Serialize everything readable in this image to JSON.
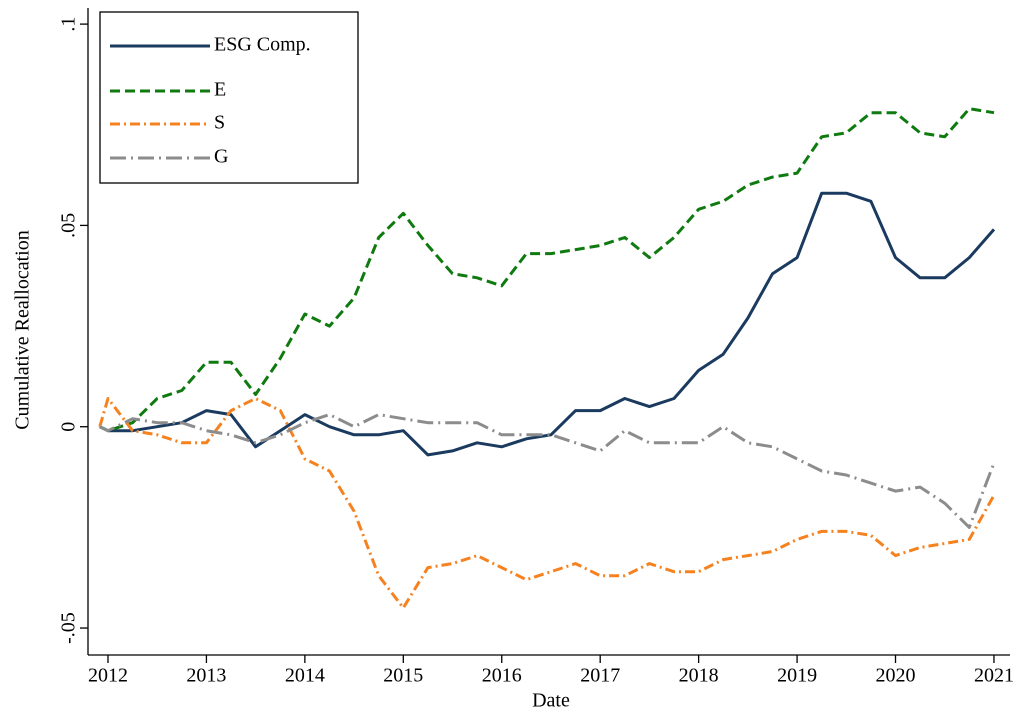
{
  "chart_data": {
    "type": "line",
    "xlabel": "Date",
    "ylabel": "Cumulative Reallocation",
    "x": [
      2011.917,
      2012,
      2012.25,
      2012.5,
      2012.75,
      2013,
      2013.25,
      2013.5,
      2013.75,
      2014,
      2014.25,
      2014.5,
      2014.75,
      2015,
      2015.25,
      2015.5,
      2015.75,
      2016,
      2016.25,
      2016.5,
      2016.75,
      2017,
      2017.25,
      2017.5,
      2017.75,
      2018,
      2018.25,
      2018.5,
      2018.75,
      2019,
      2019.25,
      2019.5,
      2019.75,
      2020,
      2020.25,
      2020.5,
      2020.75,
      2021
    ],
    "series": [
      {
        "name": "ESG Comp.",
        "color": "#1a3a5f",
        "dash": "none",
        "values": [
          0,
          -0.001,
          -0.001,
          0.0,
          0.001,
          0.004,
          0.003,
          -0.005,
          -0.001,
          0.003,
          0.0,
          -0.002,
          -0.002,
          -0.001,
          -0.007,
          -0.006,
          -0.004,
          -0.005,
          -0.003,
          -0.002,
          0.004,
          0.004,
          0.007,
          0.005,
          0.007,
          0.014,
          0.018,
          0.027,
          0.038,
          0.042,
          0.058,
          0.058,
          0.056,
          0.042,
          0.037,
          0.037,
          0.042,
          0.049
        ]
      },
      {
        "name": "E",
        "color": "#0f7a0f",
        "dash": "10,5",
        "values": [
          0,
          -0.001,
          0.001,
          0.007,
          0.009,
          0.016,
          0.016,
          0.008,
          0.017,
          0.028,
          0.025,
          0.032,
          0.047,
          0.053,
          0.045,
          0.038,
          0.037,
          0.035,
          0.043,
          0.043,
          0.044,
          0.045,
          0.047,
          0.042,
          0.047,
          0.054,
          0.056,
          0.06,
          0.062,
          0.063,
          0.072,
          0.073,
          0.078,
          0.078,
          0.073,
          0.072,
          0.079,
          0.078
        ]
      },
      {
        "name": "S",
        "color": "#f5821f",
        "dash": "10,4,2,4",
        "values": [
          0,
          0.007,
          -0.001,
          -0.002,
          -0.004,
          -0.004,
          0.004,
          0.007,
          0.004,
          -0.008,
          -0.011,
          -0.021,
          -0.037,
          -0.045,
          -0.035,
          -0.034,
          -0.032,
          -0.035,
          -0.038,
          -0.036,
          -0.034,
          -0.037,
          -0.037,
          -0.034,
          -0.036,
          -0.036,
          -0.033,
          -0.032,
          -0.031,
          -0.028,
          -0.026,
          -0.026,
          -0.027,
          -0.032,
          -0.03,
          -0.029,
          -0.028,
          -0.017
        ]
      },
      {
        "name": "G",
        "color": "#8c8c8c",
        "dash": "16,5,2,5",
        "values": [
          0,
          -0.001,
          0.002,
          0.001,
          0.001,
          -0.001,
          -0.002,
          -0.004,
          -0.002,
          0.001,
          0.003,
          0.0,
          0.003,
          0.002,
          0.001,
          0.001,
          0.001,
          -0.002,
          -0.002,
          -0.002,
          -0.004,
          -0.006,
          -0.001,
          -0.004,
          -0.004,
          -0.004,
          0.0,
          -0.004,
          -0.005,
          -0.008,
          -0.011,
          -0.012,
          -0.014,
          -0.016,
          -0.015,
          -0.019,
          -0.025,
          -0.009
        ]
      }
    ],
    "xlim": [
      2011.797,
      2021.163
    ],
    "xticks": [
      2012,
      2013,
      2014,
      2015,
      2016,
      2017,
      2018,
      2019,
      2020,
      2021
    ],
    "ylim": [
      -0.0567,
      0.104
    ],
    "yticks": [
      {
        "value": -0.05,
        "label": "-.05"
      },
      0,
      {
        "value": 0.05,
        "label": ".05"
      },
      {
        "value": 0.1,
        "label": ".1"
      }
    ],
    "legend": "top-left"
  }
}
